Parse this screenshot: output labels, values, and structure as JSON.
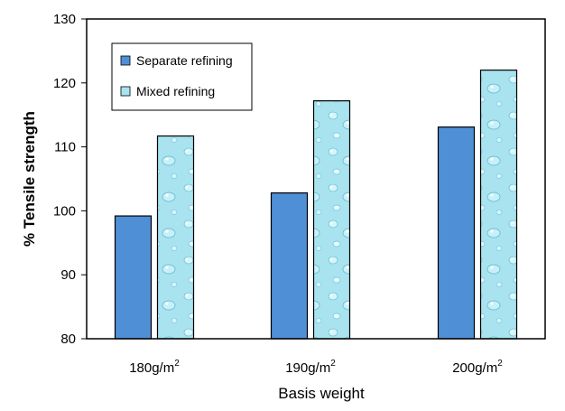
{
  "chart_data": {
    "type": "bar",
    "categories": [
      "180g/m",
      "190g/m",
      "200g/m"
    ],
    "category_superscript": "2",
    "series": [
      {
        "name": "Separate refining",
        "values": [
          99.2,
          102.8,
          113.1
        ],
        "color": "#4f8fd6",
        "fill": "solid"
      },
      {
        "name": "Mixed refining",
        "values": [
          111.7,
          117.2,
          122.0
        ],
        "color": "#a9e3ef",
        "fill": "water-droplet texture"
      }
    ],
    "xlabel": "Basis weight",
    "ylabel": "% Tensile strength",
    "ylim": [
      80,
      130
    ],
    "yticks": [
      80,
      90,
      100,
      110,
      120,
      130
    ],
    "grid": false,
    "legend_position": "top-left inside plot"
  }
}
